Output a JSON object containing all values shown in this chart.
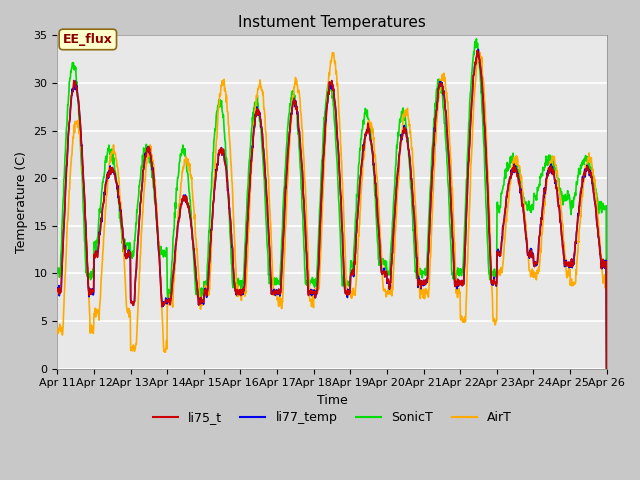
{
  "title": "Instument Temperatures",
  "xlabel": "Time",
  "ylabel": "Temperature (C)",
  "ylim": [
    0,
    35
  ],
  "xlim": [
    0,
    15
  ],
  "tick_labels": [
    "Apr 11",
    "Apr 12",
    "Apr 13",
    "Apr 14",
    "Apr 15",
    "Apr 16",
    "Apr 17",
    "Apr 18",
    "Apr 19",
    "Apr 20",
    "Apr 21",
    "Apr 22",
    "Apr 23",
    "Apr 24",
    "Apr 25",
    "Apr 26"
  ],
  "annotation_text": "EE_flux",
  "bg_color": "#e8e8e8",
  "fig_bg_color": "#c8c8c8",
  "series_colors": {
    "li75_t": "#cc0000",
    "li77_temp": "#0000ee",
    "SonicT": "#00dd00",
    "AirT": "#ffaa00"
  },
  "series_linewidth": 1.2,
  "yticks": [
    0,
    5,
    10,
    15,
    20,
    25,
    30,
    35
  ],
  "legend_entries": [
    "li75_t",
    "li77_temp",
    "SonicT",
    "AirT"
  ],
  "title_fontsize": 11,
  "label_fontsize": 9,
  "tick_fontsize": 8
}
